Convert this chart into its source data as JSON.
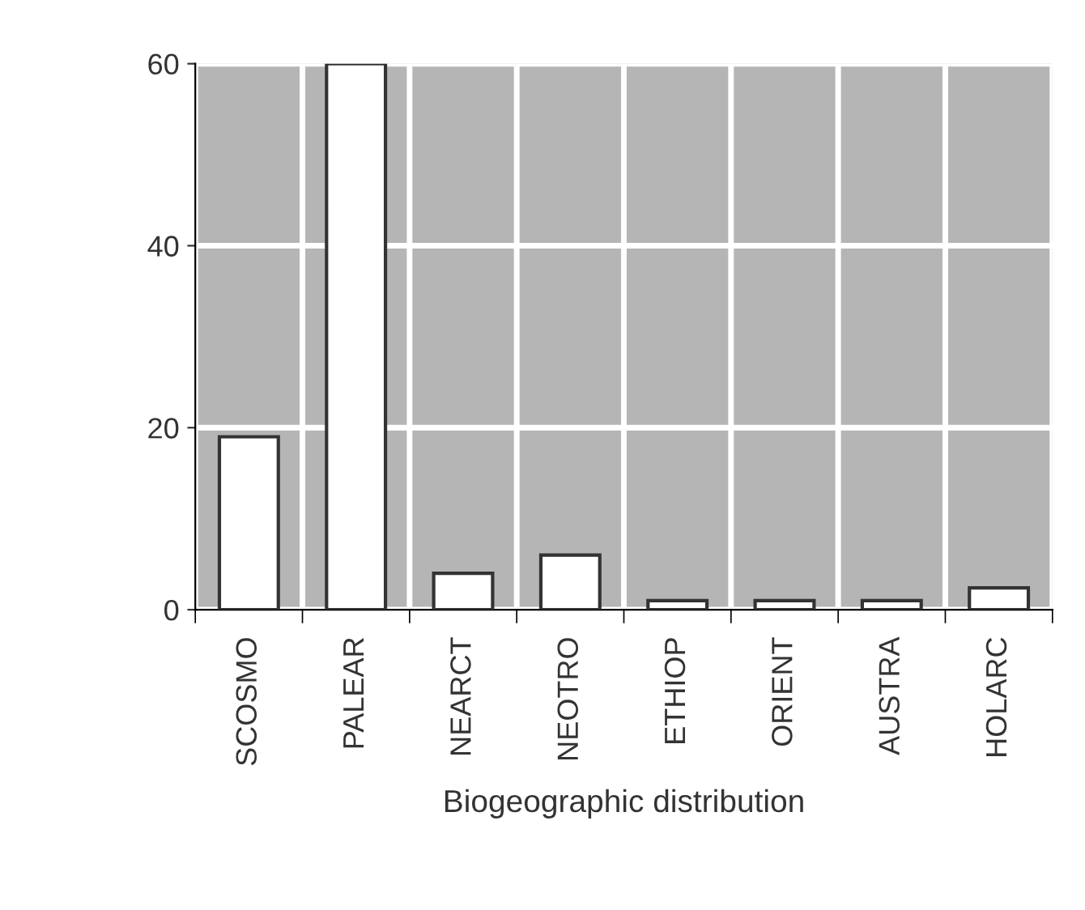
{
  "chart_data": {
    "type": "bar",
    "xlabel": "Biogeographic distribution",
    "categories": [
      "SCOSMO",
      "PALEAR",
      "NEARCT",
      "NEOTRO",
      "ETHIOP",
      "ORIENT",
      "AUSTRA",
      "HOLARC"
    ],
    "values": [
      19,
      60,
      4,
      6,
      1,
      1,
      1,
      2.4
    ],
    "color": "#ffffff",
    "ylim": [
      0,
      60
    ],
    "yticks": [
      0,
      20,
      40,
      60
    ],
    "grid": true
  }
}
